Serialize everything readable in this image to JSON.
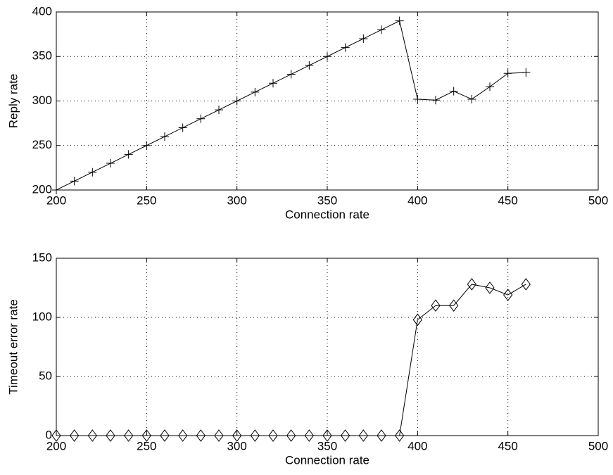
{
  "chart_data": [
    {
      "type": "line",
      "xlabel": "Connection rate",
      "ylabel": "Reply rate",
      "x": [
        200,
        210,
        220,
        230,
        240,
        250,
        260,
        270,
        280,
        290,
        300,
        310,
        320,
        330,
        340,
        350,
        360,
        370,
        380,
        390,
        400,
        410,
        420,
        430,
        440,
        450,
        460
      ],
      "values": [
        200,
        210,
        220,
        230,
        240,
        250,
        260,
        270,
        280,
        290,
        300,
        310,
        320,
        330,
        340,
        350,
        360,
        370,
        380,
        390,
        302,
        301,
        311,
        302,
        316,
        331,
        332
      ],
      "color": "#000000",
      "marker": "plus",
      "xlim": [
        200,
        500
      ],
      "ylim": [
        200,
        400
      ],
      "xticks": [
        200,
        250,
        300,
        350,
        400,
        450,
        500
      ],
      "yticks": [
        200,
        250,
        300,
        350,
        400
      ],
      "grid": true
    },
    {
      "type": "line",
      "xlabel": "Connection rate",
      "ylabel": "Timeout error rate",
      "x": [
        200,
        210,
        220,
        230,
        240,
        250,
        260,
        270,
        280,
        290,
        300,
        310,
        320,
        330,
        340,
        350,
        360,
        370,
        380,
        390,
        400,
        410,
        420,
        430,
        440,
        450,
        460
      ],
      "values": [
        0,
        0,
        0,
        0,
        0,
        0,
        0,
        0,
        0,
        0,
        0,
        0,
        0,
        0,
        0,
        0,
        0,
        0,
        0,
        0,
        98,
        110,
        110,
        128,
        125,
        119,
        128
      ],
      "color": "#000000",
      "marker": "diamond",
      "xlim": [
        200,
        500
      ],
      "ylim": [
        0,
        150
      ],
      "xticks": [
        200,
        250,
        300,
        350,
        400,
        450,
        500
      ],
      "yticks": [
        0,
        50,
        100,
        150
      ],
      "grid": true
    }
  ]
}
